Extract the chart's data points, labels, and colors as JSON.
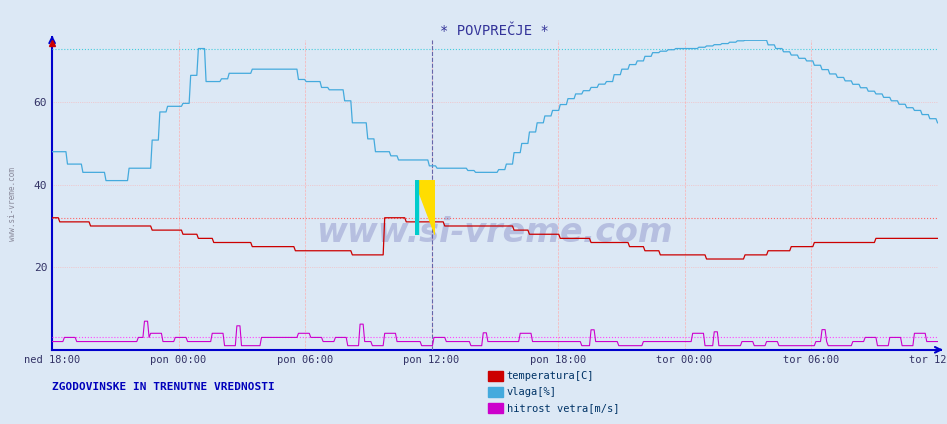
{
  "title": "* POVPREČJE *",
  "background_color": "#dce8f5",
  "plot_bg_color": "#dce8f5",
  "x_labels": [
    "ned 18:00",
    "pon 00:00",
    "pon 06:00",
    "pon 12:00",
    "pon 18:00",
    "tor 00:00",
    "tor 06:00",
    "tor 12:00"
  ],
  "y_ticks": [
    20,
    40,
    60
  ],
  "y_min": 0,
  "y_max": 75,
  "legend_label_temp": "temperatura[C]",
  "legend_label_vlaga": "vlaga[%]",
  "legend_label_hitrost": "hitrost vetra[m/s]",
  "footer_text": "ZGODOVINSKE IN TRENUTNE VREDNOSTI",
  "watermark": "www.si-vreme.com",
  "color_temp": "#cc0000",
  "color_vlaga": "#44aadd",
  "color_hitrost": "#cc00cc",
  "color_grid_h": "#ffaaaa",
  "color_grid_v": "#ffaaaa",
  "color_axis": "#0000cc",
  "avg_line_cyan": "#44ccdd",
  "avg_line_red": "#ff6666",
  "avg_line_magenta": "#ff44ff",
  "avg_temp": 32,
  "avg_vlaga": 73,
  "avg_hitrost": 3,
  "n_points": 576,
  "pon12_line_color": "#6666aa",
  "title_color": "#333399",
  "tick_color": "#333366",
  "footer_color": "#0000bb",
  "watermark_color": "#5555aa",
  "sidebar_color": "#888899"
}
